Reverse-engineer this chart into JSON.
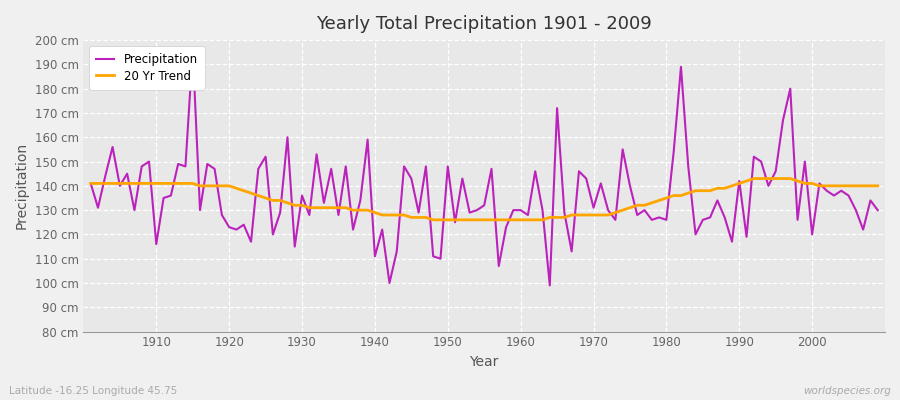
{
  "title": "Yearly Total Precipitation 1901 - 2009",
  "xlabel": "Year",
  "ylabel": "Precipitation",
  "footnote_left": "Latitude -16.25 Longitude 45.75",
  "footnote_right": "worldspecies.org",
  "bg_color": "#f0f0f0",
  "plot_bg_color": "#e8e8e8",
  "grid_color": "#ffffff",
  "line_color_precip": "#bb22bb",
  "line_color_trend": "#FFA500",
  "ylim": [
    80,
    200
  ],
  "ytick_step": 10,
  "years": [
    1901,
    1902,
    1903,
    1904,
    1905,
    1906,
    1907,
    1908,
    1909,
    1910,
    1911,
    1912,
    1913,
    1914,
    1915,
    1916,
    1917,
    1918,
    1919,
    1920,
    1921,
    1922,
    1923,
    1924,
    1925,
    1926,
    1927,
    1928,
    1929,
    1930,
    1931,
    1932,
    1933,
    1934,
    1935,
    1936,
    1937,
    1938,
    1939,
    1940,
    1941,
    1942,
    1943,
    1944,
    1945,
    1946,
    1947,
    1948,
    1949,
    1950,
    1951,
    1952,
    1953,
    1954,
    1955,
    1956,
    1957,
    1958,
    1959,
    1960,
    1961,
    1962,
    1963,
    1964,
    1965,
    1966,
    1967,
    1968,
    1969,
    1970,
    1971,
    1972,
    1973,
    1974,
    1975,
    1976,
    1977,
    1978,
    1979,
    1980,
    1981,
    1982,
    1983,
    1984,
    1985,
    1986,
    1987,
    1988,
    1989,
    1990,
    1991,
    1992,
    1993,
    1994,
    1995,
    1996,
    1997,
    1998,
    1999,
    2000,
    2001,
    2002,
    2003,
    2004,
    2005,
    2006,
    2007,
    2008,
    2009
  ],
  "precip": [
    141,
    131,
    144,
    156,
    140,
    145,
    130,
    148,
    150,
    116,
    135,
    136,
    149,
    148,
    196,
    130,
    149,
    147,
    128,
    123,
    122,
    124,
    117,
    147,
    152,
    120,
    129,
    160,
    115,
    136,
    128,
    153,
    133,
    147,
    128,
    148,
    122,
    134,
    159,
    111,
    122,
    100,
    113,
    148,
    143,
    129,
    148,
    111,
    110,
    148,
    125,
    143,
    129,
    130,
    132,
    147,
    107,
    123,
    130,
    130,
    128,
    146,
    130,
    99,
    172,
    129,
    113,
    146,
    143,
    131,
    141,
    130,
    126,
    155,
    140,
    128,
    130,
    126,
    127,
    126,
    154,
    189,
    148,
    120,
    126,
    127,
    134,
    127,
    117,
    142,
    119,
    152,
    150,
    140,
    146,
    167,
    180,
    126,
    150,
    120,
    141,
    138,
    136,
    138,
    136,
    130,
    122,
    134,
    130
  ],
  "trend": [
    141,
    141,
    141,
    141,
    141,
    141,
    141,
    141,
    141,
    141,
    141,
    141,
    141,
    141,
    141,
    140,
    140,
    140,
    140,
    140,
    139,
    138,
    137,
    136,
    135,
    134,
    134,
    133,
    132,
    132,
    131,
    131,
    131,
    131,
    131,
    131,
    130,
    130,
    130,
    129,
    128,
    128,
    128,
    128,
    127,
    127,
    127,
    126,
    126,
    126,
    126,
    126,
    126,
    126,
    126,
    126,
    126,
    126,
    126,
    126,
    126,
    126,
    126,
    127,
    127,
    127,
    128,
    128,
    128,
    128,
    128,
    128,
    129,
    130,
    131,
    132,
    132,
    133,
    134,
    135,
    136,
    136,
    137,
    138,
    138,
    138,
    139,
    139,
    140,
    141,
    142,
    143,
    143,
    143,
    143,
    143,
    143,
    142,
    141,
    141,
    140,
    140,
    140,
    140,
    140,
    140,
    140,
    140,
    140
  ]
}
